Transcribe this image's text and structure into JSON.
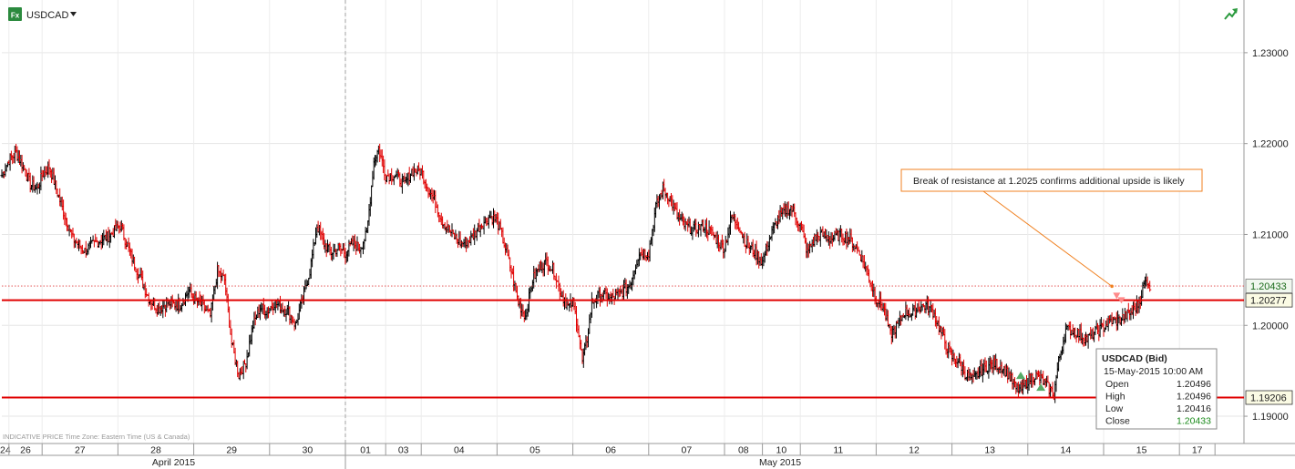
{
  "header": {
    "logo_text": "Fx",
    "symbol": "USDCAD",
    "dropdown_icon": "caret-down-icon",
    "corner_icon": "trend-up-icon"
  },
  "footer_note": "INDICATIVE PRICE   Time Zone: Eastern Time (US & Canada)",
  "colors": {
    "up": "#000000",
    "down": "#e00000",
    "level_line": "#e00000",
    "annotation_arrow": "#f08020",
    "close_value": "#1a8a1a",
    "signal_up": "#55aa66",
    "signal_down": "#ff8a8a"
  },
  "chart_data": {
    "type": "ohlc-bar",
    "title": "USDCAD",
    "ylim": [
      1.187,
      1.2358
    ],
    "y_ticks": [
      "1.23000",
      "1.22000",
      "1.21000",
      "1.20000",
      "1.19000"
    ],
    "y_tick_values": [
      1.23,
      1.22,
      1.21,
      1.2,
      1.19
    ],
    "days": [
      "24",
      "26",
      "27",
      "28",
      "29",
      "30",
      "01",
      "03",
      "04",
      "05",
      "06",
      "07",
      "08",
      "10",
      "11",
      "12",
      "13",
      "14",
      "15",
      "17"
    ],
    "day_starts": [
      0,
      6,
      34,
      98,
      162,
      226,
      290,
      324,
      354,
      418,
      482,
      546,
      610,
      642,
      674,
      738,
      802,
      866,
      930,
      994,
      1024
    ],
    "months": [
      {
        "label": "April 2015",
        "start": 0,
        "end": 290
      },
      {
        "label": "May 2015",
        "start": 290,
        "end": 1024
      }
    ],
    "month_divider_index": 290,
    "levels": [
      {
        "value": 1.20277,
        "label": "1.20277"
      },
      {
        "value": 1.19206,
        "label": "1.19206"
      }
    ],
    "last_price": {
      "value": 1.20433,
      "label": "1.20433"
    },
    "annotation": {
      "text": "Break of resistance at 1.2025 confirms additional upside is likely",
      "target_index": 937,
      "target_value": 1.2043
    },
    "signals": [
      {
        "type": "up",
        "index": 860,
        "value": 1.1945
      },
      {
        "type": "up",
        "index": 877,
        "value": 1.1932
      },
      {
        "type": "down",
        "index": 941,
        "value": 1.2032
      },
      {
        "type": "down",
        "index": 945,
        "value": 1.2027
      }
    ],
    "tooltip": {
      "title": "USDCAD (Bid)",
      "datetime": "15-May-2015 10:00 AM",
      "rows": [
        {
          "label": "Open",
          "value": "1.20496"
        },
        {
          "label": "High",
          "value": "1.20496"
        },
        {
          "label": "Low",
          "value": "1.20416"
        },
        {
          "label": "Close",
          "value": "1.20433"
        }
      ]
    },
    "close_anchors": [
      [
        0,
        1.2165
      ],
      [
        6,
        1.2182
      ],
      [
        12,
        1.219
      ],
      [
        18,
        1.2175
      ],
      [
        24,
        1.2155
      ],
      [
        30,
        1.215
      ],
      [
        34,
        1.2165
      ],
      [
        40,
        1.2175
      ],
      [
        46,
        1.215
      ],
      [
        52,
        1.2125
      ],
      [
        60,
        1.2095
      ],
      [
        70,
        1.2082
      ],
      [
        80,
        1.2092
      ],
      [
        90,
        1.2098
      ],
      [
        100,
        1.211
      ],
      [
        108,
        1.208
      ],
      [
        116,
        1.2055
      ],
      [
        124,
        1.203
      ],
      [
        132,
        1.2018
      ],
      [
        140,
        1.2025
      ],
      [
        150,
        1.2022
      ],
      [
        158,
        1.2038
      ],
      [
        162,
        1.203
      ],
      [
        170,
        1.202
      ],
      [
        176,
        1.201
      ],
      [
        182,
        1.206
      ],
      [
        188,
        1.205
      ],
      [
        194,
        1.198
      ],
      [
        200,
        1.1945
      ],
      [
        206,
        1.196
      ],
      [
        212,
        1.2
      ],
      [
        218,
        1.202
      ],
      [
        224,
        1.2015
      ],
      [
        230,
        1.2025
      ],
      [
        236,
        1.202
      ],
      [
        242,
        1.2015
      ],
      [
        248,
        1.2
      ],
      [
        254,
        1.203
      ],
      [
        260,
        1.206
      ],
      [
        266,
        1.211
      ],
      [
        272,
        1.209
      ],
      [
        278,
        1.208
      ],
      [
        284,
        1.2085
      ],
      [
        290,
        1.208
      ],
      [
        296,
        1.209
      ],
      [
        302,
        1.2085
      ],
      [
        308,
        1.21
      ],
      [
        314,
        1.218
      ],
      [
        318,
        1.2195
      ],
      [
        324,
        1.2165
      ],
      [
        332,
        1.2165
      ],
      [
        340,
        1.2155
      ],
      [
        346,
        1.217
      ],
      [
        354,
        1.217
      ],
      [
        360,
        1.215
      ],
      [
        366,
        1.2135
      ],
      [
        372,
        1.2115
      ],
      [
        380,
        1.21
      ],
      [
        388,
        1.209
      ],
      [
        396,
        1.2095
      ],
      [
        404,
        1.211
      ],
      [
        412,
        1.212
      ],
      [
        418,
        1.2115
      ],
      [
        424,
        1.209
      ],
      [
        430,
        1.206
      ],
      [
        436,
        1.2025
      ],
      [
        442,
        1.201
      ],
      [
        448,
        1.205
      ],
      [
        454,
        1.2065
      ],
      [
        460,
        1.207
      ],
      [
        466,
        1.206
      ],
      [
        472,
        1.2035
      ],
      [
        478,
        1.202
      ],
      [
        482,
        1.2025
      ],
      [
        486,
        1.2
      ],
      [
        490,
        1.196
      ],
      [
        494,
        1.1985
      ],
      [
        498,
        1.2025
      ],
      [
        506,
        1.2035
      ],
      [
        514,
        1.203
      ],
      [
        522,
        1.2035
      ],
      [
        530,
        1.2045
      ],
      [
        538,
        1.208
      ],
      [
        546,
        1.208
      ],
      [
        552,
        1.213
      ],
      [
        558,
        1.215
      ],
      [
        564,
        1.214
      ],
      [
        570,
        1.212
      ],
      [
        576,
        1.211
      ],
      [
        584,
        1.2105
      ],
      [
        592,
        1.211
      ],
      [
        600,
        1.21
      ],
      [
        606,
        1.209
      ],
      [
        610,
        1.2085
      ],
      [
        616,
        1.212
      ],
      [
        622,
        1.211
      ],
      [
        628,
        1.209
      ],
      [
        636,
        1.208
      ],
      [
        642,
        1.207
      ],
      [
        648,
        1.2095
      ],
      [
        654,
        1.2115
      ],
      [
        660,
        1.2125
      ],
      [
        666,
        1.213
      ],
      [
        670,
        1.212
      ],
      [
        674,
        1.211
      ],
      [
        680,
        1.208
      ],
      [
        686,
        1.2095
      ],
      [
        692,
        1.21
      ],
      [
        700,
        1.2095
      ],
      [
        708,
        1.21
      ],
      [
        716,
        1.2095
      ],
      [
        724,
        1.208
      ],
      [
        730,
        1.206
      ],
      [
        738,
        1.203
      ],
      [
        744,
        1.202
      ],
      [
        750,
        1.199
      ],
      [
        756,
        1.2
      ],
      [
        762,
        1.2015
      ],
      [
        768,
        1.2012
      ],
      [
        774,
        1.202
      ],
      [
        780,
        1.2022
      ],
      [
        786,
        1.2015
      ],
      [
        792,
        1.1995
      ],
      [
        798,
        1.1975
      ],
      [
        802,
        1.1965
      ],
      [
        808,
        1.196
      ],
      [
        814,
        1.1945
      ],
      [
        820,
        1.194
      ],
      [
        826,
        1.195
      ],
      [
        832,
        1.1955
      ],
      [
        838,
        1.1958
      ],
      [
        844,
        1.1955
      ],
      [
        850,
        1.1945
      ],
      [
        856,
        1.193
      ],
      [
        862,
        1.193
      ],
      [
        866,
        1.194
      ],
      [
        872,
        1.1945
      ],
      [
        878,
        1.194
      ],
      [
        884,
        1.193
      ],
      [
        888,
        1.1925
      ],
      [
        892,
        1.196
      ],
      [
        898,
        1.1995
      ],
      [
        904,
        1.1995
      ],
      [
        910,
        1.199
      ],
      [
        916,
        1.1985
      ],
      [
        922,
        1.1992
      ],
      [
        930,
        1.1998
      ],
      [
        936,
        1.2005
      ],
      [
        942,
        1.2005
      ],
      [
        948,
        1.201
      ],
      [
        954,
        1.2015
      ],
      [
        960,
        1.2025
      ],
      [
        964,
        1.2045
      ],
      [
        967,
        1.205
      ],
      [
        969,
        1.2043
      ]
    ]
  }
}
